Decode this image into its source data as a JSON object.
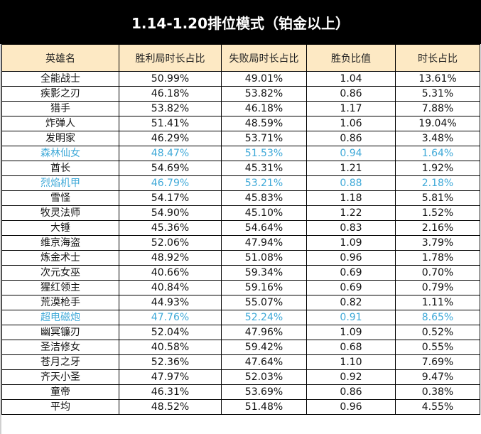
{
  "title": "1.14-1.20排位模式（铂金以上）",
  "colors": {
    "title_bg": "#000000",
    "title_text": "#ffffff",
    "header_bg": "#fde9c4",
    "highlight_text": "#3fa9d8",
    "border": "#000000"
  },
  "table": {
    "headers": [
      "英雄名",
      "胜利局时长占比",
      "失败局时长占比",
      "胜负比值",
      "时长占比"
    ],
    "rows": [
      {
        "name": "全能战士",
        "win": "50.99%",
        "loss": "49.01%",
        "ratio": "1.04",
        "share": "13.61%",
        "highlight": false
      },
      {
        "name": "疾影之刃",
        "win": "46.18%",
        "loss": "53.82%",
        "ratio": "0.86",
        "share": "5.31%",
        "highlight": false
      },
      {
        "name": "猎手",
        "win": "53.82%",
        "loss": "46.18%",
        "ratio": "1.17",
        "share": "7.88%",
        "highlight": false
      },
      {
        "name": "炸弹人",
        "win": "51.41%",
        "loss": "48.59%",
        "ratio": "1.06",
        "share": "19.04%",
        "highlight": false
      },
      {
        "name": "发明家",
        "win": "46.29%",
        "loss": "53.71%",
        "ratio": "0.86",
        "share": "3.48%",
        "highlight": false
      },
      {
        "name": "森林仙女",
        "win": "48.47%",
        "loss": "51.53%",
        "ratio": "0.94",
        "share": "1.64%",
        "highlight": true
      },
      {
        "name": "酋长",
        "win": "54.69%",
        "loss": "45.31%",
        "ratio": "1.21",
        "share": "1.92%",
        "highlight": false
      },
      {
        "name": "烈焰机甲",
        "win": "46.79%",
        "loss": "53.21%",
        "ratio": "0.88",
        "share": "2.18%",
        "highlight": true
      },
      {
        "name": "雪怪",
        "win": "54.17%",
        "loss": "45.83%",
        "ratio": "1.18",
        "share": "5.81%",
        "highlight": false
      },
      {
        "name": "牧灵法师",
        "win": "54.90%",
        "loss": "45.10%",
        "ratio": "1.22",
        "share": "1.52%",
        "highlight": false
      },
      {
        "name": "大锤",
        "win": "45.36%",
        "loss": "54.64%",
        "ratio": "0.83",
        "share": "2.16%",
        "highlight": false
      },
      {
        "name": "维京海盗",
        "win": "52.06%",
        "loss": "47.94%",
        "ratio": "1.09",
        "share": "3.79%",
        "highlight": false
      },
      {
        "name": "炼金术士",
        "win": "48.92%",
        "loss": "51.08%",
        "ratio": "0.96",
        "share": "1.78%",
        "highlight": false
      },
      {
        "name": "次元女巫",
        "win": "40.66%",
        "loss": "59.34%",
        "ratio": "0.69",
        "share": "0.70%",
        "highlight": false
      },
      {
        "name": "猩红领主",
        "win": "40.84%",
        "loss": "59.16%",
        "ratio": "0.69",
        "share": "0.79%",
        "highlight": false
      },
      {
        "name": "荒漠枪手",
        "win": "44.93%",
        "loss": "55.07%",
        "ratio": "0.82",
        "share": "1.11%",
        "highlight": false
      },
      {
        "name": "超电磁炮",
        "win": "47.76%",
        "loss": "52.24%",
        "ratio": "0.91",
        "share": "8.65%",
        "highlight": true
      },
      {
        "name": "幽冥镰刃",
        "win": "52.04%",
        "loss": "47.96%",
        "ratio": "1.09",
        "share": "0.52%",
        "highlight": false
      },
      {
        "name": "圣洁修女",
        "win": "40.58%",
        "loss": "59.42%",
        "ratio": "0.68",
        "share": "0.55%",
        "highlight": false
      },
      {
        "name": "苍月之牙",
        "win": "52.36%",
        "loss": "47.64%",
        "ratio": "1.10",
        "share": "7.69%",
        "highlight": false
      },
      {
        "name": "齐天小圣",
        "win": "47.97%",
        "loss": "52.03%",
        "ratio": "0.92",
        "share": "9.47%",
        "highlight": false
      },
      {
        "name": "童帝",
        "win": "46.31%",
        "loss": "53.69%",
        "ratio": "0.86",
        "share": "0.38%",
        "highlight": false
      },
      {
        "name": "平均",
        "win": "48.52%",
        "loss": "51.48%",
        "ratio": "0.96",
        "share": "4.55%",
        "highlight": false
      }
    ]
  }
}
